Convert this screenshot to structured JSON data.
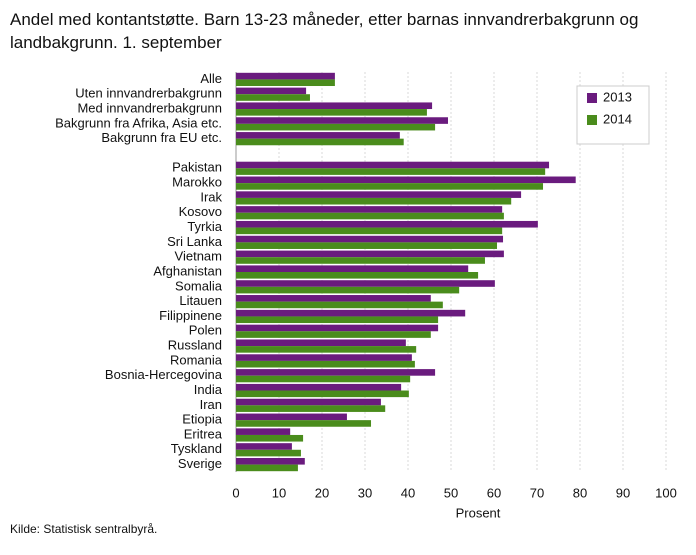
{
  "chart_data": {
    "type": "barh",
    "title": "Andel med kontantstøtte. Barn 13-23 måneder, etter barnas innvandrerbakgrunn og landbakgrunn. 1. september",
    "xlabel": "Prosent",
    "source": "Kilde: Statistisk sentralbyrå.",
    "categories": [
      "Alle",
      "Uten innvandrerbakgrunn",
      "Med innvandrerbakgrunn",
      "Bakgrunn fra Afrika, Asia etc.",
      "Bakgrunn fra EU etc.",
      null,
      "Pakistan",
      "Marokko",
      "Irak",
      "Kosovo",
      "Tyrkia",
      "Sri Lanka",
      "Vietnam",
      "Afghanistan",
      "Somalia",
      "Litauen",
      "Filippinene",
      "Polen",
      "Russland",
      "Romania",
      "Bosnia-Hercegovina",
      "India",
      "Iran",
      "Etiopia",
      "Eritrea",
      "Tyskland",
      "Sverige"
    ],
    "series": [
      {
        "name": "2013",
        "color": "#6a1b7e",
        "values": [
          23,
          16.3,
          45.6,
          49.3,
          38.1,
          null,
          72.8,
          79,
          66.3,
          61.9,
          70.2,
          62.1,
          62.3,
          54,
          60.2,
          45.3,
          53.3,
          47,
          39.5,
          40.9,
          46.3,
          38.4,
          33.7,
          25.8,
          12.6,
          13,
          16
        ]
      },
      {
        "name": "2014",
        "color": "#4a8c1c",
        "values": [
          23,
          17.2,
          44.4,
          46.3,
          39,
          null,
          71.9,
          71.4,
          64,
          62.3,
          61.9,
          60.7,
          57.9,
          56.3,
          51.9,
          48.1,
          47,
          45.3,
          41.9,
          41.6,
          40.5,
          40.2,
          34.7,
          31.4,
          15.6,
          15.1,
          14.4
        ]
      }
    ],
    "xlim": [
      0,
      100
    ],
    "xticks": [
      0,
      10,
      20,
      30,
      40,
      50,
      60,
      70,
      80,
      90,
      100
    ],
    "grid": true,
    "legend": "top-right"
  }
}
